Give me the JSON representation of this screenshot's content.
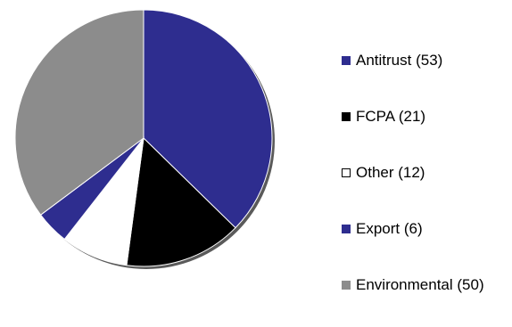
{
  "chart_data": {
    "type": "pie",
    "title": "",
    "start_angle_deg": 0,
    "direction": "clockwise",
    "legend_position": "right",
    "slices": [
      {
        "label": "Antitrust (53)",
        "category": "Antitrust",
        "value": 53,
        "color": "#2e2d8f",
        "outline": false
      },
      {
        "label": "FCPA (21)",
        "category": "FCPA",
        "value": 21,
        "color": "#000000",
        "outline": false
      },
      {
        "label": "Other (12)",
        "category": "Other",
        "value": 12,
        "color": "#ffffff",
        "outline": true
      },
      {
        "label": "Export (6)",
        "category": "Export",
        "value": 6,
        "color": "#2e2d8f",
        "outline": false
      },
      {
        "label": "Environmental (50)",
        "category": "Environmental",
        "value": 50,
        "color": "#8c8c8c",
        "outline": false
      }
    ]
  }
}
